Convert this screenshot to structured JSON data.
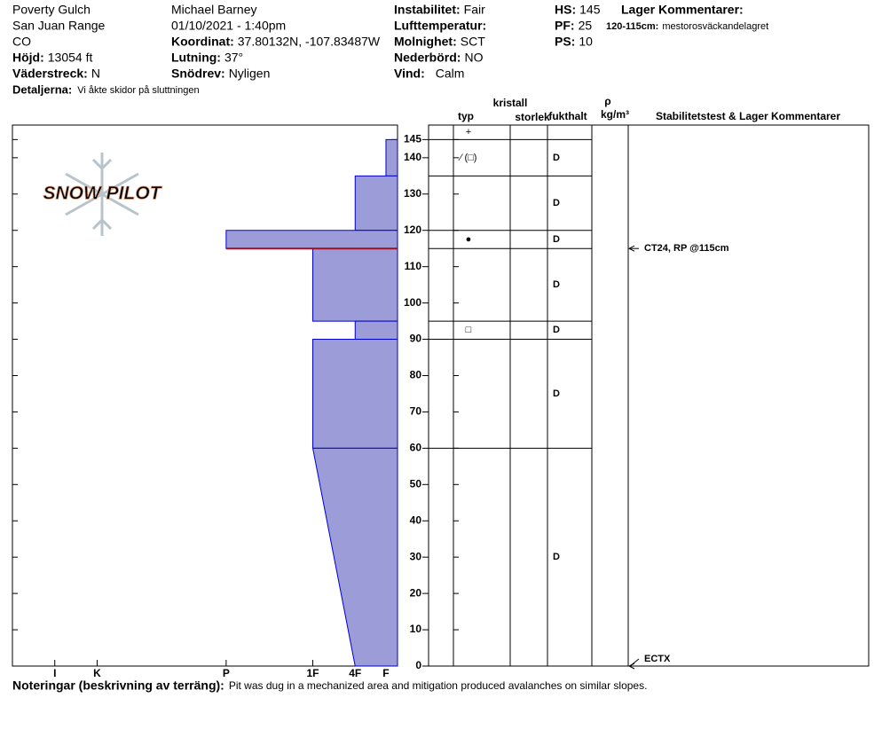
{
  "header": {
    "site": "Poverty Gulch",
    "range": "San Juan Range",
    "state": "CO",
    "elevation": {
      "label": "Höjd:",
      "value": "13054 ft"
    },
    "aspect": {
      "label": "Väderstreck:",
      "value": "N"
    },
    "details": {
      "label": "Detaljerna:",
      "value": "Vi åkte skidor på sluttningen"
    },
    "observer": "Michael Barney",
    "datetime": "01/10/2021 - 1:40pm",
    "coordinates": {
      "label": "Koordinat:",
      "value": "37.80132N, -107.83487W"
    },
    "slope": {
      "label": "Lutning:",
      "value": "37°"
    },
    "wind_loading": {
      "label": "Snödrev:",
      "value": "Nyligen"
    },
    "stability": {
      "label": "Instabilitet:",
      "value": "Fair"
    },
    "air_temp": {
      "label": "Lufttemperatur:"
    },
    "sky": {
      "label": "Molnighet:",
      "value": "SCT"
    },
    "precip": {
      "label": "Nederbörd:",
      "value": "NO"
    },
    "wind": {
      "label": "Vind:",
      "value": "Calm"
    },
    "hs": {
      "label": "HS:",
      "value": 145
    },
    "pf": {
      "label": "PF:",
      "value": 25
    },
    "ps": {
      "label": "PS:",
      "value": 10
    },
    "layer_comments": {
      "label": "Lager Kommentarer:",
      "items": [
        {
          "range": "120-115cm:",
          "text": "mestorosväckandelagret"
        }
      ]
    }
  },
  "table_headers": {
    "crystal": "kristall",
    "type": "typ",
    "size": "storlek",
    "moisture": "fukthalt",
    "density": "ρ",
    "density_unit": "kg/m³",
    "tests": "Stabilitetstest & Lager Kommentarer"
  },
  "logo": "SNOW PILOT",
  "footer": {
    "label": "Noteringar (beskrivning av terräng):",
    "value": "Pit was dug in a mechanized area and mitigation produced avalanches on similar slopes."
  },
  "chart_data": {
    "type": "profile",
    "ylim": [
      0,
      149
    ],
    "yticks": [
      0,
      10,
      20,
      30,
      40,
      50,
      60,
      70,
      80,
      90,
      100,
      110,
      120,
      130,
      140,
      145
    ],
    "xlim": [
      0,
      100
    ],
    "xticks": [
      {
        "value": 89,
        "label": "I"
      },
      {
        "value": 78,
        "label": "K"
      },
      {
        "value": 44.5,
        "label": "P"
      },
      {
        "value": 22,
        "label": "1F"
      },
      {
        "value": 11,
        "label": "4F"
      },
      {
        "value": 3,
        "label": "F"
      }
    ],
    "color": "#9c9cd8",
    "layers": [
      {
        "top": 145,
        "bottom": 135,
        "hardness": [
          3,
          3
        ]
      },
      {
        "top": 135,
        "bottom": 120,
        "hardness": [
          11,
          11
        ]
      },
      {
        "top": 120,
        "bottom": 115,
        "hardness": [
          44.5,
          44.5
        ]
      },
      {
        "top": 115,
        "bottom": 95,
        "hardness": [
          22,
          22
        ]
      },
      {
        "top": 95,
        "bottom": 90,
        "hardness": [
          11,
          11
        ]
      },
      {
        "top": 90,
        "bottom": 60,
        "hardness": [
          22,
          22
        ]
      },
      {
        "top": 60,
        "bottom": 0,
        "hardness": [
          22,
          11
        ]
      }
    ],
    "grains": [
      {
        "top": 149,
        "bottom": 145,
        "type": "+"
      },
      {
        "top": 145,
        "bottom": 135,
        "type": "⁄ (□)",
        "moisture": "D"
      },
      {
        "top": 135,
        "bottom": 120,
        "moisture": "D"
      },
      {
        "top": 120,
        "bottom": 115,
        "type": "●",
        "moisture": "D"
      },
      {
        "top": 115,
        "bottom": 95,
        "moisture": "D"
      },
      {
        "top": 95,
        "bottom": 90,
        "type": "□",
        "moisture": "D"
      },
      {
        "top": 90,
        "bottom": 60,
        "moisture": "D"
      },
      {
        "top": 60,
        "bottom": 0,
        "moisture": "D"
      }
    ],
    "tests": [
      {
        "text": "CT24, RP @115cm",
        "depth": 115
      },
      {
        "text": "ECTX",
        "depth": 0
      }
    ]
  }
}
